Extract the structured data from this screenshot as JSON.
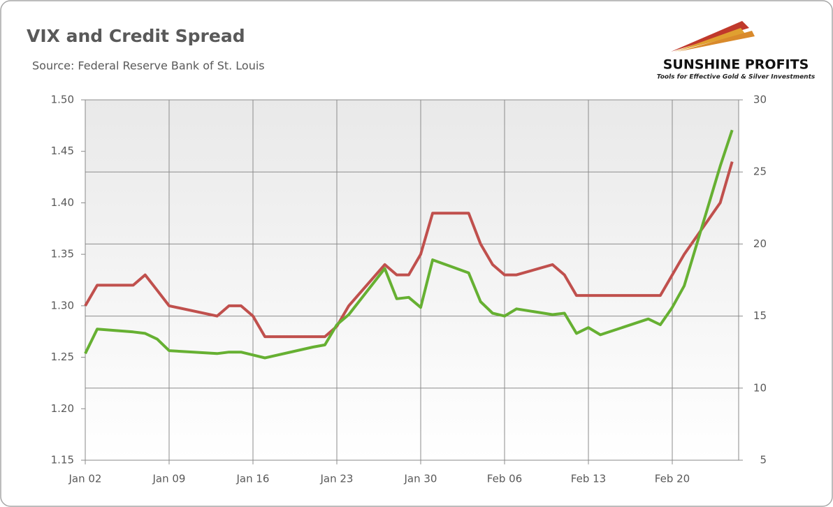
{
  "chart_data": {
    "type": "line",
    "title": "VIX and Credit Spread",
    "subtitle": "Source: Federal Reserve Bank of St. Louis",
    "logo_title": "SUNSHINE PROFITS",
    "logo_tagline": "Tools for Effective Gold & Silver Investments",
    "x": [
      "Jan 02",
      "Jan 03",
      "Jan 06",
      "Jan 07",
      "Jan 08",
      "Jan 09",
      "Jan 13",
      "Jan 14",
      "Jan 15",
      "Jan 16",
      "Jan 17",
      "Jan 21",
      "Jan 22",
      "Jan 23",
      "Jan 24",
      "Jan 27",
      "Jan 28",
      "Jan 29",
      "Jan 30",
      "Jan 31",
      "Feb 03",
      "Feb 04",
      "Feb 05",
      "Feb 06",
      "Feb 07",
      "Feb 10",
      "Feb 11",
      "Feb 12",
      "Feb 13",
      "Feb 14",
      "Feb 18",
      "Feb 19",
      "Feb 20",
      "Feb 21",
      "Feb 24",
      "Feb 25"
    ],
    "xticks": [
      "Jan 02",
      "Jan 09",
      "Jan 16",
      "Jan 23",
      "Jan 30",
      "Feb 06",
      "Feb 13",
      "Feb 20"
    ],
    "series": [
      {
        "color": "#c0504d",
        "values": [
          1.3,
          1.32,
          1.32,
          1.33,
          1.315,
          1.3,
          1.29,
          1.3,
          1.3,
          1.29,
          1.27,
          1.27,
          1.27,
          1.28,
          1.3,
          1.34,
          1.33,
          1.33,
          1.35,
          1.39,
          1.39,
          1.36,
          1.34,
          1.33,
          1.33,
          1.34,
          1.33,
          1.31,
          1.31,
          1.31,
          1.31,
          1.31,
          1.33,
          1.35,
          1.4,
          1.44
        ]
      },
      {
        "color": "#66b032",
        "axis": "y2",
        "values": [
          12.4,
          14.1,
          13.9,
          13.8,
          13.4,
          12.6,
          12.4,
          12.5,
          12.5,
          12.3,
          12.1,
          12.85,
          13.0,
          14.4,
          15.1,
          18.3,
          16.2,
          16.3,
          15.6,
          18.9,
          18.0,
          16.0,
          15.2,
          15.0,
          15.5,
          15.1,
          15.2,
          13.8,
          14.2,
          13.7,
          14.8,
          14.4,
          15.6,
          17.1,
          25.4,
          27.9
        ]
      }
    ],
    "ylim": [
      1.15,
      1.5
    ],
    "yticks": [
      {
        "value": 1.15,
        "label": "1.15"
      },
      {
        "value": 1.2,
        "label": "1.20"
      },
      {
        "value": 1.25,
        "label": "1.25"
      },
      {
        "value": 1.3,
        "label": "1.30"
      },
      {
        "value": 1.35,
        "label": "1.35"
      },
      {
        "value": 1.4,
        "label": "1.40"
      },
      {
        "value": 1.45,
        "label": "1.45"
      },
      {
        "value": 1.5,
        "label": "1.50"
      }
    ],
    "y2lim": [
      5,
      30
    ],
    "y2ticks": [
      5,
      10,
      15,
      20,
      25,
      30
    ],
    "grid": true
  }
}
